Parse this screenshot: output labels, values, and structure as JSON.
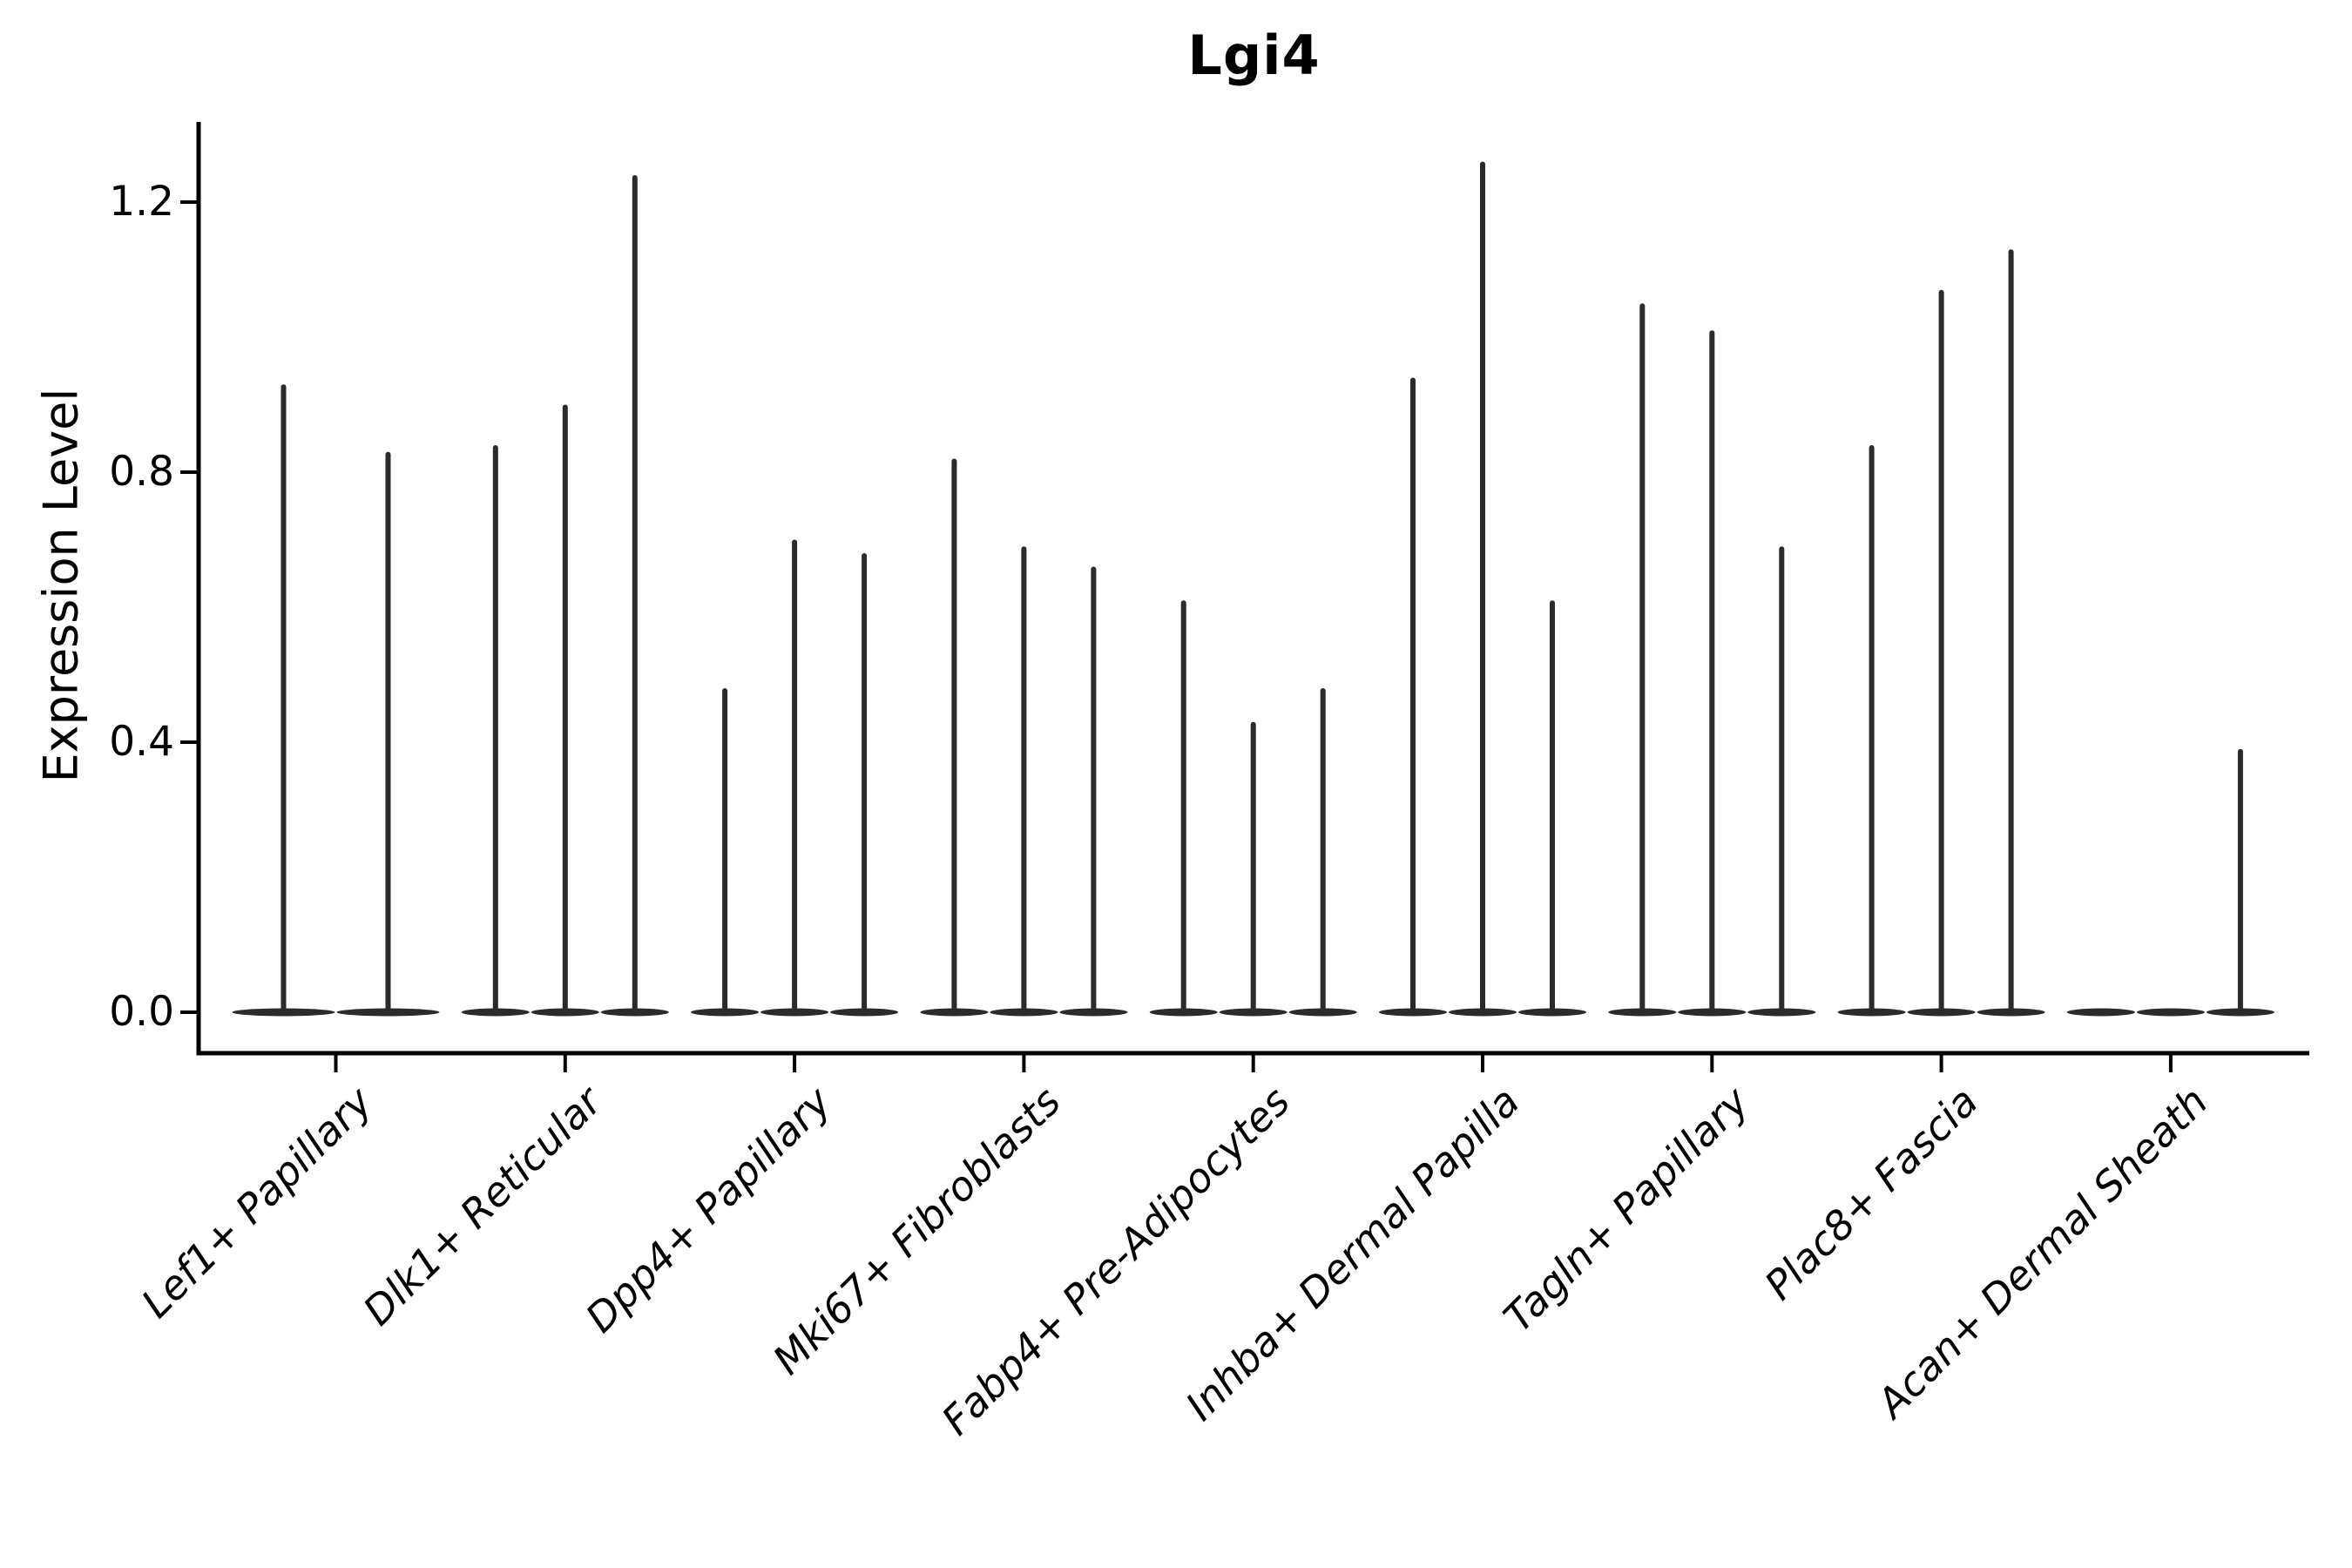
{
  "chart_data": {
    "type": "violin",
    "title": "Lgi4",
    "ylabel": "Expression Level",
    "xlabel": "",
    "yticks": [
      0.0,
      0.4,
      0.8,
      1.2
    ],
    "ylim": [
      0,
      1.32
    ],
    "grid": false,
    "legend": null,
    "colors": {
      "violin": "#2b2b2b",
      "axis": "#000000",
      "text": "#000000"
    },
    "categories": [
      "Lef1+ Papillary",
      "Dlk1+ Reticular",
      "Dpp4+ Papillary",
      "Mki67+ Fibroblasts",
      "Fabp4+ Pre-Adipocytes",
      "Inhba+ Dermal Papilla",
      "Tagln+ Papillary",
      "Plac8+ Fascia",
      "Acan+ Dermal Sheath"
    ],
    "groups": [
      {
        "category": "Lef1+ Papillary",
        "violin_maxima": [
          0.93,
          0.83
        ]
      },
      {
        "category": "Dlk1+ Reticular",
        "violin_maxima": [
          0.84,
          0.9,
          1.24
        ]
      },
      {
        "category": "Dpp4+ Papillary",
        "violin_maxima": [
          0.48,
          0.7,
          0.68
        ]
      },
      {
        "category": "Mki67+ Fibroblasts",
        "violin_maxima": [
          0.82,
          0.69,
          0.66
        ]
      },
      {
        "category": "Fabp4+ Pre-Adipocytes",
        "violin_maxima": [
          0.61,
          0.43,
          0.48
        ]
      },
      {
        "category": "Inhba+ Dermal Papilla",
        "violin_maxima": [
          0.94,
          1.26,
          0.61
        ]
      },
      {
        "category": "Tagln+ Papillary",
        "violin_maxima": [
          1.05,
          1.01,
          0.69
        ]
      },
      {
        "category": "Plac8+ Fascia",
        "violin_maxima": [
          0.84,
          1.07,
          1.13
        ]
      },
      {
        "category": "Acan+ Dermal Sheath",
        "violin_maxima": [
          0.0,
          0.0,
          0.39
        ]
      }
    ]
  }
}
